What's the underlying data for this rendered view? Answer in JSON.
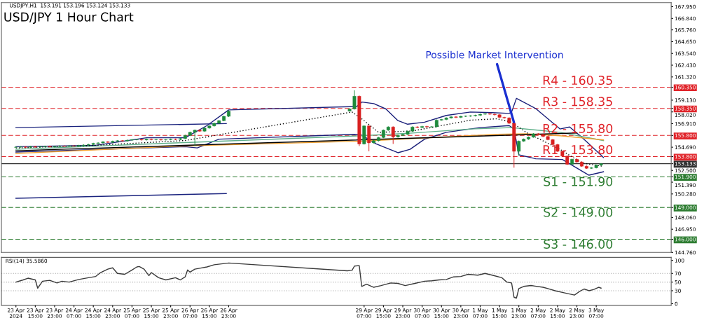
{
  "chart_data": [
    {
      "type": "candlestick",
      "title": "USD/JPY 1 Hour Chart",
      "subtitle": "USDJPY,H1  153.191 153.196 153.124 153.133",
      "annotations": [
        {
          "text": "Possible Market Intervention",
          "x": "2024-05-01T21:00",
          "y": 157.01
        }
      ],
      "tick_labels": "y",
      "xlim": [
        "2024-04-23T01:00",
        "2024-05-04T14:00"
      ],
      "ylim": [
        144.76,
        168.33
      ],
      "yticks": [
        {
          "value": 167.95,
          "label": "167.950"
        },
        {
          "value": 166.84,
          "label": "166.840"
        },
        {
          "value": 165.76,
          "label": "165.760"
        },
        {
          "value": 164.65,
          "label": "164.650"
        },
        {
          "value": 163.54,
          "label": "163.540"
        },
        {
          "value": 162.43,
          "label": "162.430"
        },
        {
          "value": 161.32,
          "label": "161.320"
        },
        {
          "value": 160.35,
          "label": "160.350"
        },
        {
          "value": 159.13,
          "label": "159.130"
        },
        {
          "value": 158.35,
          "label": "158.350"
        },
        {
          "value": 158.02,
          "label": "158.020"
        },
        {
          "value": 156.91,
          "label": "156.910"
        },
        {
          "value": 155.8,
          "label": "155.800"
        },
        {
          "value": 154.69,
          "label": "154.690"
        },
        {
          "value": 153.8,
          "label": "153.800"
        },
        {
          "value": 153.133,
          "label": "153.133"
        },
        {
          "value": 152.5,
          "label": "152.500"
        },
        {
          "value": 151.9,
          "label": "151.900"
        },
        {
          "value": 151.39,
          "label": "151.390"
        },
        {
          "value": 150.28,
          "label": "150.280"
        },
        {
          "value": 149.0,
          "label": "149.000"
        },
        {
          "value": 148.06,
          "label": "148.060"
        },
        {
          "value": 146.95,
          "label": "146.950"
        },
        {
          "value": 146.0,
          "label": "146.000"
        },
        {
          "value": 144.76,
          "label": "144.760"
        }
      ],
      "ref_lines": [
        {
          "axis": "y",
          "value": 160.35,
          "label": "R4 - 160.35",
          "color": "#e0242a",
          "line_style": "dashed"
        },
        {
          "axis": "y",
          "value": 158.35,
          "label": "R3 - 158.35",
          "color": "#e0242a",
          "line_style": "dashed"
        },
        {
          "axis": "y",
          "value": 155.8,
          "label": "R2 - 155.80",
          "color": "#e0242a",
          "line_style": "dashed"
        },
        {
          "axis": "y",
          "value": 153.8,
          "label": "R1 - 153.80",
          "color": "#e0242a",
          "line_style": "dashed"
        },
        {
          "axis": "y",
          "value": 153.133,
          "color": "#303030",
          "line_style": "solid"
        },
        {
          "axis": "y",
          "value": 151.9,
          "label": "S1 - 151.90",
          "color": "#2e7d32",
          "line_style": "dashed"
        },
        {
          "axis": "y",
          "value": 149.0,
          "label": "S2 - 149.00",
          "color": "#2e7d32",
          "line_style": "dashed"
        },
        {
          "axis": "y",
          "value": 146.0,
          "label": "S3 - 146.00",
          "color": "#2e7d32",
          "line_style": "dashed"
        }
      ],
      "x": [
        "2024-04-23T07:00",
        "2024-04-23T09:00",
        "2024-04-23T11:00",
        "2024-04-23T13:00",
        "2024-04-23T15:00",
        "2024-04-23T17:00",
        "2024-04-23T19:00",
        "2024-04-23T21:00",
        "2024-04-23T23:00",
        "2024-04-24T01:00",
        "2024-04-24T03:00",
        "2024-04-24T05:00",
        "2024-04-24T07:00",
        "2024-04-24T09:00",
        "2024-04-24T11:00",
        "2024-04-24T13:00",
        "2024-04-24T15:00",
        "2024-04-24T17:00",
        "2024-04-24T19:00",
        "2024-04-24T21:00",
        "2024-04-24T23:00",
        "2024-04-25T01:00",
        "2024-04-25T03:00",
        "2024-04-25T05:00",
        "2024-04-25T07:00",
        "2024-04-25T09:00",
        "2024-04-25T11:00",
        "2024-04-25T13:00",
        "2024-04-25T15:00",
        "2024-04-25T17:00",
        "2024-04-25T19:00",
        "2024-04-25T21:00",
        "2024-04-25T23:00",
        "2024-04-26T01:00",
        "2024-04-26T03:00",
        "2024-04-26T05:00",
        "2024-04-26T07:00",
        "2024-04-26T09:00",
        "2024-04-26T11:00",
        "2024-04-26T13:00",
        "2024-04-26T15:00",
        "2024-04-26T17:00",
        "2024-04-26T19:00",
        "2024-04-26T21:00",
        "2024-04-26T23:00",
        "2024-04-29T01:00",
        "2024-04-29T03:00",
        "2024-04-29T05:00",
        "2024-04-29T07:00",
        "2024-04-29T09:00",
        "2024-04-29T11:00",
        "2024-04-29T13:00",
        "2024-04-29T15:00",
        "2024-04-29T17:00",
        "2024-04-29T19:00",
        "2024-04-29T21:00",
        "2024-04-29T23:00",
        "2024-04-30T01:00",
        "2024-04-30T03:00",
        "2024-04-30T05:00",
        "2024-04-30T07:00",
        "2024-04-30T09:00",
        "2024-04-30T11:00",
        "2024-04-30T13:00",
        "2024-04-30T15:00",
        "2024-04-30T17:00",
        "2024-04-30T19:00",
        "2024-04-30T21:00",
        "2024-04-30T23:00",
        "2024-05-01T01:00",
        "2024-05-01T03:00",
        "2024-05-01T05:00",
        "2024-05-01T07:00",
        "2024-05-01T09:00",
        "2024-05-01T11:00",
        "2024-05-01T13:00",
        "2024-05-01T15:00",
        "2024-05-01T17:00",
        "2024-05-01T19:00",
        "2024-05-01T21:00",
        "2024-05-01T23:00",
        "2024-05-02T01:00",
        "2024-05-02T03:00",
        "2024-05-02T05:00",
        "2024-05-02T07:00",
        "2024-05-02T09:00",
        "2024-05-02T11:00",
        "2024-05-02T13:00",
        "2024-05-02T15:00",
        "2024-05-02T17:00",
        "2024-05-02T19:00",
        "2024-05-02T21:00",
        "2024-05-02T23:00",
        "2024-05-03T01:00",
        "2024-05-03T03:00",
        "2024-05-03T05:00",
        "2024-05-03T07:00",
        "2024-05-03T09:00"
      ],
      "ohlc": [
        [
          154.68,
          154.76,
          154.62,
          154.7
        ],
        [
          154.7,
          154.78,
          154.64,
          154.72
        ],
        [
          154.72,
          154.78,
          154.62,
          154.68
        ],
        [
          154.68,
          154.81,
          154.62,
          154.75
        ],
        [
          154.75,
          154.81,
          154.64,
          154.7
        ],
        [
          154.7,
          154.8,
          154.64,
          154.74
        ],
        [
          154.74,
          154.84,
          154.68,
          154.78
        ],
        [
          154.78,
          154.84,
          154.66,
          154.72
        ],
        [
          154.72,
          154.82,
          154.66,
          154.76
        ],
        [
          154.76,
          154.86,
          154.7,
          154.8
        ],
        [
          154.8,
          154.86,
          154.72,
          154.78
        ],
        [
          154.78,
          154.88,
          154.72,
          154.82
        ],
        [
          154.82,
          154.88,
          154.74,
          154.8
        ],
        [
          154.8,
          154.91,
          154.74,
          154.85
        ],
        [
          154.85,
          154.96,
          154.79,
          154.9
        ],
        [
          154.9,
          155.01,
          154.84,
          154.95
        ],
        [
          154.95,
          155.11,
          154.89,
          155.05
        ],
        [
          155.05,
          155.16,
          154.99,
          155.1
        ],
        [
          155.1,
          155.26,
          155.04,
          155.2
        ],
        [
          155.2,
          155.26,
          155.09,
          155.15
        ],
        [
          155.15,
          155.31,
          155.09,
          155.25
        ],
        [
          155.25,
          155.36,
          155.19,
          155.3
        ],
        [
          155.3,
          155.36,
          155.22,
          155.28
        ],
        [
          155.28,
          155.41,
          155.22,
          155.35
        ],
        [
          155.35,
          155.46,
          155.29,
          155.4
        ],
        [
          155.4,
          155.48,
          155.34,
          155.42
        ],
        [
          155.42,
          155.48,
          155.32,
          155.38
        ],
        [
          155.38,
          155.51,
          155.32,
          155.45
        ],
        [
          155.45,
          155.51,
          155.34,
          155.4
        ],
        [
          155.4,
          155.48,
          155.34,
          155.42
        ],
        [
          155.42,
          155.48,
          155.32,
          155.38
        ],
        [
          155.38,
          155.46,
          155.32,
          155.4
        ],
        [
          155.4,
          155.51,
          155.34,
          155.45
        ],
        [
          155.45,
          155.51,
          155.36,
          155.42
        ],
        [
          155.42,
          155.56,
          155.36,
          155.5
        ],
        [
          155.5,
          155.86,
          155.44,
          155.8
        ],
        [
          155.8,
          156.16,
          155.74,
          156.1
        ],
        [
          156.1,
          156.36,
          154.8,
          156.3
        ],
        [
          156.3,
          156.36,
          156.14,
          156.2
        ],
        [
          156.2,
          156.56,
          156.14,
          156.5
        ],
        [
          156.5,
          156.76,
          156.44,
          156.7
        ],
        [
          156.7,
          157.01,
          156.64,
          156.95
        ],
        [
          156.95,
          157.26,
          156.89,
          157.2
        ],
        [
          157.2,
          157.66,
          157.14,
          157.6
        ],
        [
          157.6,
          158.16,
          157.54,
          158.1
        ],
        [
          158.1,
          158.36,
          158.04,
          158.3
        ],
        [
          158.3,
          160.06,
          158.24,
          159.5
        ],
        [
          159.5,
          159.56,
          154.8,
          155.0
        ],
        [
          155.0,
          156.76,
          154.94,
          156.7
        ],
        [
          156.7,
          156.76,
          154.3,
          155.1
        ],
        [
          155.1,
          155.36,
          155.04,
          155.3
        ],
        [
          155.3,
          155.66,
          155.24,
          155.6
        ],
        [
          155.6,
          156.36,
          155.54,
          156.3
        ],
        [
          156.3,
          156.66,
          156.24,
          156.6
        ],
        [
          156.6,
          156.66,
          155.0,
          155.65
        ],
        [
          155.65,
          155.86,
          155.59,
          155.8
        ],
        [
          155.8,
          155.96,
          155.74,
          155.9
        ],
        [
          155.9,
          156.26,
          155.84,
          156.2
        ],
        [
          156.2,
          156.66,
          156.14,
          156.6
        ],
        [
          156.6,
          156.66,
          156.49,
          156.55
        ],
        [
          156.55,
          156.71,
          156.49,
          156.65
        ],
        [
          156.65,
          156.71,
          156.54,
          156.6
        ],
        [
          156.6,
          156.68,
          156.54,
          156.62
        ],
        [
          156.62,
          157.31,
          156.56,
          157.25
        ],
        [
          157.25,
          157.36,
          157.19,
          157.3
        ],
        [
          157.3,
          157.51,
          157.24,
          157.45
        ],
        [
          157.45,
          157.61,
          157.39,
          157.55
        ],
        [
          157.55,
          157.61,
          157.44,
          157.5
        ],
        [
          157.5,
          157.66,
          157.44,
          157.6
        ],
        [
          157.6,
          157.68,
          157.54,
          157.62
        ],
        [
          157.62,
          157.71,
          157.56,
          157.65
        ],
        [
          157.65,
          157.76,
          157.59,
          157.7
        ],
        [
          157.7,
          157.86,
          157.64,
          157.8
        ],
        [
          157.8,
          157.91,
          157.74,
          157.85
        ],
        [
          157.85,
          157.91,
          157.74,
          157.8
        ],
        [
          157.8,
          157.86,
          157.69,
          157.75
        ],
        [
          157.75,
          157.81,
          157.44,
          157.5
        ],
        [
          157.5,
          157.56,
          157.39,
          157.45
        ],
        [
          157.45,
          157.51,
          156.89,
          156.95
        ],
        [
          156.95,
          157.01,
          152.76,
          154.3
        ],
        [
          154.3,
          155.32,
          153.9,
          155.26
        ],
        [
          155.26,
          155.51,
          155.2,
          155.45
        ],
        [
          155.45,
          155.7,
          155.39,
          155.64
        ],
        [
          155.64,
          156.02,
          155.58,
          155.96
        ],
        [
          155.96,
          156.02,
          155.84,
          155.9
        ],
        [
          155.9,
          155.96,
          155.64,
          155.7
        ],
        [
          155.7,
          155.76,
          155.34,
          155.4
        ],
        [
          155.4,
          155.46,
          154.88,
          154.94
        ],
        [
          154.94,
          155.0,
          154.24,
          154.3
        ],
        [
          154.3,
          154.36,
          153.79,
          153.85
        ],
        [
          153.85,
          153.91,
          153.02,
          153.08
        ],
        [
          153.08,
          153.61,
          153.02,
          153.55
        ],
        [
          153.55,
          153.61,
          153.24,
          153.3
        ],
        [
          153.3,
          153.36,
          152.84,
          152.9
        ],
        [
          152.9,
          152.96,
          152.64,
          152.7
        ],
        [
          152.7,
          152.81,
          152.64,
          152.75
        ],
        [
          152.75,
          153.06,
          152.69,
          153.0
        ],
        [
          153.0,
          153.2,
          152.94,
          153.13
        ]
      ],
      "colors": [
        "#1e8a3c",
        "#1e8a3c",
        "#d92020",
        "#1e8a3c",
        "#d92020",
        "#1e8a3c",
        "#1e8a3c",
        "#d92020",
        "#1e8a3c",
        "#1e8a3c",
        "#d92020",
        "#1e8a3c",
        "#d92020",
        "#1e8a3c",
        "#1e8a3c",
        "#1e8a3c",
        "#1e8a3c",
        "#1e8a3c",
        "#1e8a3c",
        "#d92020",
        "#1e8a3c",
        "#1e8a3c",
        "#d92020",
        "#1e8a3c",
        "#1e8a3c",
        "#1e8a3c",
        "#d92020",
        "#1e8a3c",
        "#d92020",
        "#1e8a3c",
        "#d92020",
        "#1e8a3c",
        "#1e8a3c",
        "#d92020",
        "#1e8a3c",
        "#1e8a3c",
        "#1e8a3c",
        "#1e8a3c",
        "#d92020",
        "#1e8a3c",
        "#1e8a3c",
        "#1e8a3c",
        "#1e8a3c",
        "#1e8a3c",
        "#1e8a3c",
        "#1e8a3c",
        "#1e8a3c",
        "#d92020",
        "#1e8a3c",
        "#d92020",
        "#1e8a3c",
        "#1e8a3c",
        "#1e8a3c",
        "#1e8a3c",
        "#d92020",
        "#1e8a3c",
        "#1e8a3c",
        "#1e8a3c",
        "#1e8a3c",
        "#d92020",
        "#1e8a3c",
        "#d92020",
        "#1e8a3c",
        "#1e8a3c",
        "#1e8a3c",
        "#1e8a3c",
        "#1e8a3c",
        "#d92020",
        "#1e8a3c",
        "#1e8a3c",
        "#1e8a3c",
        "#1e8a3c",
        "#1e8a3c",
        "#1e8a3c",
        "#d92020",
        "#d92020",
        "#d92020",
        "#d92020",
        "#d92020",
        "#d92020",
        "#1e8a3c",
        "#1e8a3c",
        "#1e8a3c",
        "#1e8a3c",
        "#d92020",
        "#d92020",
        "#d92020",
        "#d92020",
        "#d92020",
        "#d92020",
        "#d92020",
        "#1e8a3c",
        "#d92020",
        "#d92020",
        "#d92020",
        "#1e8a3c",
        "#1e8a3c",
        "#1e8a3c"
      ],
      "series": [
        {
          "type": "line",
          "color": "#1a1f7a",
          "line_style": "solid",
          "x": [
            "2024-04-23T07:00",
            "2024-04-24T16:00",
            "2024-04-25T13:00",
            "2024-04-26T05:00",
            "2024-04-26T14:00",
            "2024-04-26T23:00",
            "2024-04-29T04:00",
            "2024-04-29T06:00",
            "2024-04-29T11:00",
            "2024-04-29T16:00",
            "2024-04-29T21:00",
            "2024-04-30T01:00",
            "2024-04-30T08:00",
            "2024-04-30T17:00",
            "2024-05-01T03:00",
            "2024-05-01T12:00",
            "2024-05-01T19:00",
            "2024-05-01T20:00",
            "2024-05-01T22:00",
            "2024-05-02T06:00",
            "2024-05-02T16:00",
            "2024-05-02T20:00",
            "2024-05-03T01:00",
            "2024-05-03T10:00"
          ],
          "values": [
            154.74,
            154.87,
            155.58,
            155.58,
            156.73,
            158.21,
            158.53,
            158.95,
            158.8,
            158.3,
            157.2,
            156.86,
            157.05,
            157.69,
            158.01,
            157.95,
            157.88,
            158.01,
            159.3,
            158.33,
            156.41,
            156.6,
            155.64,
            153.72
          ]
        },
        {
          "type": "line",
          "color": "#1a1f7a",
          "line_style": "solid",
          "x": [
            "2024-04-23T07:00",
            "2024-04-26T05:00",
            "2024-04-26T10:00",
            "2024-04-26T19:00",
            "2024-04-29T03:00",
            "2024-04-29T06:00",
            "2024-04-29T12:00",
            "2024-04-29T21:00",
            "2024-04-30T02:00",
            "2024-04-30T08:00",
            "2024-04-30T17:00",
            "2024-05-01T07:00",
            "2024-05-01T19:00",
            "2024-05-01T21:00",
            "2024-05-01T23:00",
            "2024-05-02T06:00",
            "2024-05-02T17:00",
            "2024-05-03T04:00",
            "2024-05-03T10:00"
          ],
          "values": [
            154.23,
            154.74,
            154.62,
            155.45,
            155.9,
            155.83,
            155.0,
            154.17,
            154.49,
            155.45,
            156.09,
            156.54,
            156.73,
            156.41,
            153.97,
            153.6,
            153.53,
            152.05,
            152.37
          ]
        },
        {
          "type": "line",
          "color": "#5fb08a",
          "line_style": "solid",
          "x": [
            "2024-04-23T07:00",
            "2024-04-26T05:00",
            "2024-04-29T06:00",
            "2024-04-30T03:00",
            "2024-05-01T03:00",
            "2024-05-01T20:00",
            "2024-05-02T16:00",
            "2024-05-03T10:00"
          ],
          "values": [
            154.49,
            155.13,
            155.77,
            156.03,
            156.41,
            156.54,
            156.09,
            155.32
          ]
        },
        {
          "type": "line",
          "color": "#f0a030",
          "line_style": "solid",
          "x": [
            "2024-04-23T07:00",
            "2024-04-26T05:00",
            "2024-04-29T06:00",
            "2024-04-30T03:00",
            "2024-05-01T14:00",
            "2024-05-02T02:00",
            "2024-05-02T16:00",
            "2024-05-03T10:00"
          ],
          "values": [
            154.1,
            154.81,
            155.26,
            155.51,
            155.9,
            155.96,
            155.77,
            155.38
          ]
        },
        {
          "type": "line",
          "color": "#000000",
          "line_style": "dotted",
          "x": [
            "2024-04-23T07:00",
            "2024-04-24T16:00",
            "2024-04-26T05:00",
            "2024-04-29T02:00",
            "2024-04-29T06:00",
            "2024-04-29T13:00",
            "2024-04-30T03:00",
            "2024-05-01T03:00",
            "2024-05-01T14:00",
            "2024-05-01T20:00",
            "2024-05-02T02:00",
            "2024-05-02T16:00",
            "2024-05-03T01:00",
            "2024-05-03T10:00"
          ],
          "values": [
            154.62,
            154.87,
            155.32,
            158.01,
            157.37,
            156.09,
            156.22,
            157.24,
            157.37,
            157.05,
            156.09,
            154.49,
            153.21,
            152.88
          ]
        },
        {
          "type": "line",
          "color": "#000000",
          "line_style": "solid",
          "x": [
            "2024-04-23T07:00",
            "2024-05-02T23:00"
          ],
          "values": [
            154.36,
            156.03
          ]
        },
        {
          "type": "line",
          "color": "#1a237e",
          "line_style": "solid",
          "x": [
            "2024-04-23T07:00",
            "2024-04-26T22:00"
          ],
          "values": [
            156.54,
            156.92
          ]
        },
        {
          "type": "line",
          "color": "#1a237e",
          "line_style": "solid",
          "x": [
            "2024-04-23T07:00",
            "2024-04-26T22:00"
          ],
          "values": [
            149.87,
            150.32
          ]
        }
      ]
    },
    {
      "type": "line",
      "title": "RSI(14) 35.5860",
      "xlim": [
        "2024-04-23T01:00",
        "2024-05-04T14:00"
      ],
      "ylim": [
        -3.5,
        107
      ],
      "yticks": [
        0,
        30,
        50,
        70,
        100
      ],
      "xticks": [
        {
          "value": "2024-04-23T07:00",
          "label": "23 Apr 2024"
        },
        {
          "value": "2024-04-23T15:00",
          "label": "23 Apr 15:00"
        },
        {
          "value": "2024-04-23T23:00",
          "label": "23 Apr 23:00"
        },
        {
          "value": "2024-04-24T07:00",
          "label": "24 Apr 07:00"
        },
        {
          "value": "2024-04-24T15:00",
          "label": "24 Apr 15:00"
        },
        {
          "value": "2024-04-24T23:00",
          "label": "24 Apr 23:00"
        },
        {
          "value": "2024-04-25T07:00",
          "label": "25 Apr 07:00"
        },
        {
          "value": "2024-04-25T15:00",
          "label": "25 Apr 15:00"
        },
        {
          "value": "2024-04-25T23:00",
          "label": "25 Apr 23:00"
        },
        {
          "value": "2024-04-26T07:00",
          "label": "26 Apr 07:00"
        },
        {
          "value": "2024-04-26T15:00",
          "label": "26 Apr 15:00"
        },
        {
          "value": "2024-04-26T23:00",
          "label": "26 Apr 23:00"
        },
        {
          "value": "2024-04-29T07:00",
          "label": "29 Apr 07:00"
        },
        {
          "value": "2024-04-29T15:00",
          "label": "29 Apr 15:00"
        },
        {
          "value": "2024-04-29T23:00",
          "label": "29 Apr 23:00"
        },
        {
          "value": "2024-04-30T07:00",
          "label": "30 Apr 07:00"
        },
        {
          "value": "2024-04-30T15:00",
          "label": "30 Apr 15:00"
        },
        {
          "value": "2024-04-30T23:00",
          "label": "30 Apr 23:00"
        },
        {
          "value": "2024-05-01T07:00",
          "label": "1 May 07:00"
        },
        {
          "value": "2024-05-01T15:00",
          "label": "1 May 15:00"
        },
        {
          "value": "2024-05-01T23:00",
          "label": "1 May 23:00"
        },
        {
          "value": "2024-05-02T07:00",
          "label": "2 May 07:00"
        },
        {
          "value": "2024-05-02T15:00",
          "label": "2 May 15:00"
        },
        {
          "value": "2024-05-02T23:00",
          "label": "2 May 23:00"
        },
        {
          "value": "2024-05-03T07:00",
          "label": "3 May 07:00"
        }
      ],
      "ref_lines": [
        {
          "axis": "y",
          "value": 70,
          "color": "#a0a0a0",
          "line_style": "dotted"
        },
        {
          "axis": "y",
          "value": 50,
          "color": "#a0a0a0",
          "line_style": "dotted"
        },
        {
          "axis": "y",
          "value": 30,
          "color": "#a0a0a0",
          "line_style": "dotted"
        }
      ],
      "series": [
        {
          "color": "#3a3a3a",
          "line_style": "solid",
          "x": [
            "2024-04-23T07:00",
            "2024-04-23T10:00",
            "2024-04-23T12:00",
            "2024-04-23T15:00",
            "2024-04-23T16:00",
            "2024-04-23T18:00",
            "2024-04-23T21:00",
            "2024-04-24T00:00",
            "2024-04-24T02:00",
            "2024-04-24T05:00",
            "2024-04-24T09:00",
            "2024-04-24T13:00",
            "2024-04-24T16:00",
            "2024-04-24T18:00",
            "2024-04-24T21:00",
            "2024-04-24T23:00",
            "2024-04-25T01:00",
            "2024-04-25T04:00",
            "2024-04-25T07:00",
            "2024-04-25T09:00",
            "2024-04-25T10:00",
            "2024-04-25T12:00",
            "2024-04-25T14:00",
            "2024-04-25T15:00",
            "2024-04-25T18:00",
            "2024-04-25T21:00",
            "2024-04-26T01:00",
            "2024-04-26T03:00",
            "2024-04-26T05:00",
            "2024-04-26T06:00",
            "2024-04-26T07:00",
            "2024-04-26T09:00",
            "2024-04-26T11:00",
            "2024-04-26T14:00",
            "2024-04-26T17:00",
            "2024-04-26T20:00",
            "2024-04-26T23:00",
            "2024-04-29T00:00",
            "2024-04-29T02:00",
            "2024-04-29T03:00",
            "2024-04-29T05:00",
            "2024-04-29T06:00",
            "2024-04-29T08:00",
            "2024-04-29T11:00",
            "2024-04-29T14:00",
            "2024-04-29T18:00",
            "2024-04-29T21:00",
            "2024-04-30T00:00",
            "2024-04-30T04:00",
            "2024-04-30T08:00",
            "2024-04-30T11:00",
            "2024-04-30T14:00",
            "2024-04-30T17:00",
            "2024-04-30T20:00",
            "2024-04-30T23:00",
            "2024-05-01T02:00",
            "2024-05-01T06:00",
            "2024-05-01T09:00",
            "2024-05-01T12:00",
            "2024-05-01T16:00",
            "2024-05-01T18:00",
            "2024-05-01T20:00",
            "2024-05-01T21:00",
            "2024-05-01T22:00",
            "2024-05-01T23:00",
            "2024-05-02T01:00",
            "2024-05-02T04:00",
            "2024-05-02T09:00",
            "2024-05-02T11:00",
            "2024-05-02T14:00",
            "2024-05-02T18:00",
            "2024-05-02T22:00",
            "2024-05-03T00:00",
            "2024-05-03T02:00",
            "2024-05-03T04:00",
            "2024-05-03T06:00",
            "2024-05-03T08:00",
            "2024-05-03T09:00"
          ],
          "values": [
            50,
            55,
            59,
            55,
            36,
            52,
            54,
            48,
            52,
            50,
            56,
            60,
            63,
            72,
            80,
            83,
            70,
            68,
            78,
            85,
            86,
            80,
            65,
            72,
            60,
            55,
            60,
            55,
            62,
            78,
            73,
            80,
            82,
            85,
            90,
            92,
            94,
            76,
            77,
            87,
            88,
            40,
            45,
            38,
            42,
            48,
            47,
            42,
            47,
            52,
            53,
            55,
            56,
            62,
            63,
            68,
            66,
            70,
            66,
            60,
            50,
            48,
            15,
            13,
            35,
            40,
            42,
            38,
            35,
            30,
            25,
            20,
            28,
            34,
            30,
            33,
            38,
            36
          ]
        }
      ]
    }
  ]
}
